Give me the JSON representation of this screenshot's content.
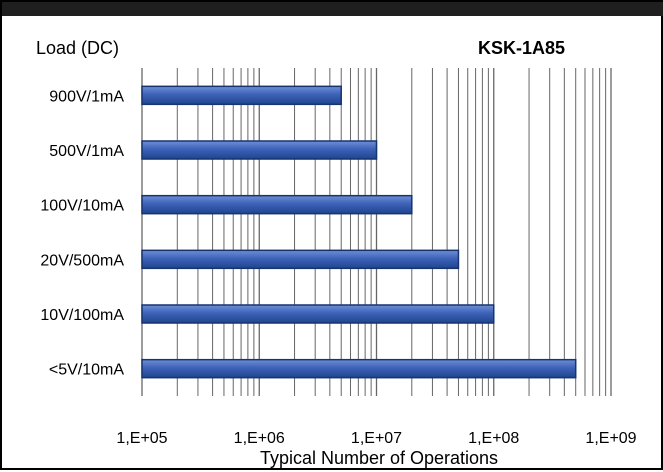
{
  "chart_data": {
    "type": "bar",
    "orientation": "horizontal",
    "title": "KSK-1A85",
    "ylabel": "Load (DC)",
    "xlabel": "Typical Number of Operations",
    "x_scale": "log",
    "xlim": [
      100000,
      1000000000
    ],
    "x_ticks": [
      100000,
      1000000,
      10000000,
      100000000,
      1000000000
    ],
    "x_tick_labels": [
      "1,E+05",
      "1,E+06",
      "1,E+07",
      "1,E+08",
      "1,E+09"
    ],
    "categories": [
      "900V/1mA",
      "500V/1mA",
      "100V/10mA",
      "20V/500mA",
      "10V/100mA",
      "<5V/10mA"
    ],
    "values": [
      5000000,
      10000000,
      20000000,
      50000000,
      100000000,
      500000000
    ],
    "grid": true,
    "colors": {
      "bar_fill": "#3d62b8",
      "bar_fill_light": "#6f8fd6",
      "bar_stroke": "#17346f",
      "grid": "#666666"
    }
  }
}
